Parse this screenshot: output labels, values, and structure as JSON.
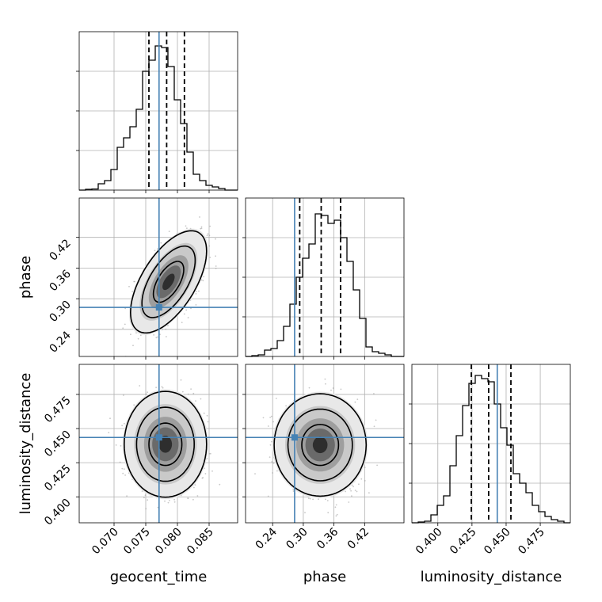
{
  "chart_data": {
    "type": "corner",
    "parameters": [
      "geocent_time",
      "phase",
      "luminosity_distance"
    ],
    "truths": [
      0.0771,
      0.283,
      0.4435
    ],
    "colors": {
      "truth": "#4682b4",
      "hist": "#000000",
      "grid": "#b0b0b0",
      "scatter": "#9a9a9a",
      "density": "#000000"
    },
    "grid": true,
    "ranges": [
      [
        0.0645,
        0.0895
      ],
      [
        0.187,
        0.497
      ],
      [
        0.381,
        0.497
      ]
    ],
    "ticks": [
      {
        "values": [
          0.07,
          0.075,
          0.08,
          0.085
        ],
        "labels": [
          "0.070",
          "0.075",
          "0.080",
          "0.085"
        ]
      },
      {
        "values": [
          0.24,
          0.3,
          0.36,
          0.42
        ],
        "labels": [
          "0.24",
          "0.30",
          "0.36",
          "0.42"
        ]
      },
      {
        "values": [
          0.4,
          0.425,
          0.45,
          0.475
        ],
        "labels": [
          "0.400",
          "0.425",
          "0.450",
          "0.475"
        ]
      }
    ],
    "histograms": [
      {
        "param": "geocent_time",
        "quantiles": [
          0.0755,
          0.0783,
          0.0811
        ],
        "counts": [
          0,
          0.005,
          0.007,
          0.04,
          0.06,
          0.13,
          0.27,
          0.33,
          0.4,
          0.51,
          0.75,
          0.82,
          0.91,
          0.9,
          0.78,
          0.57,
          0.42,
          0.24,
          0.1,
          0.06,
          0.03,
          0.02,
          0.01,
          0,
          0
        ]
      },
      {
        "param": "phase",
        "quantiles": [
          0.293,
          0.335,
          0.373
        ],
        "counts": [
          0,
          0.005,
          0.01,
          0.04,
          0.05,
          0.1,
          0.19,
          0.33,
          0.5,
          0.62,
          0.71,
          0.9,
          0.89,
          0.84,
          0.86,
          0.75,
          0.6,
          0.42,
          0.24,
          0.06,
          0.03,
          0.02,
          0.01,
          0,
          0
        ]
      },
      {
        "param": "luminosity_distance",
        "quantiles": [
          0.4245,
          0.4372,
          0.4535
        ],
        "counts": [
          0,
          0.005,
          0.01,
          0.05,
          0.11,
          0.17,
          0.36,
          0.55,
          0.74,
          0.88,
          0.93,
          0.91,
          0.89,
          0.75,
          0.6,
          0.49,
          0.31,
          0.25,
          0.19,
          0.11,
          0.07,
          0.04,
          0.02,
          0.01,
          0
        ]
      }
    ],
    "joint": [
      {
        "x": "geocent_time",
        "y": "phase",
        "mean": [
          0.0786,
          0.333
        ],
        "sd": [
          0.0024,
          0.04
        ],
        "corr": 0.6
      },
      {
        "x": "geocent_time",
        "y": "luminosity_distance",
        "mean": [
          0.0781,
          0.4385
        ],
        "sd": [
          0.0026,
          0.0155
        ],
        "corr": 0.0
      },
      {
        "x": "phase",
        "y": "luminosity_distance",
        "mean": [
          0.333,
          0.438
        ],
        "sd": [
          0.036,
          0.015
        ],
        "corr": 0.0
      }
    ]
  }
}
